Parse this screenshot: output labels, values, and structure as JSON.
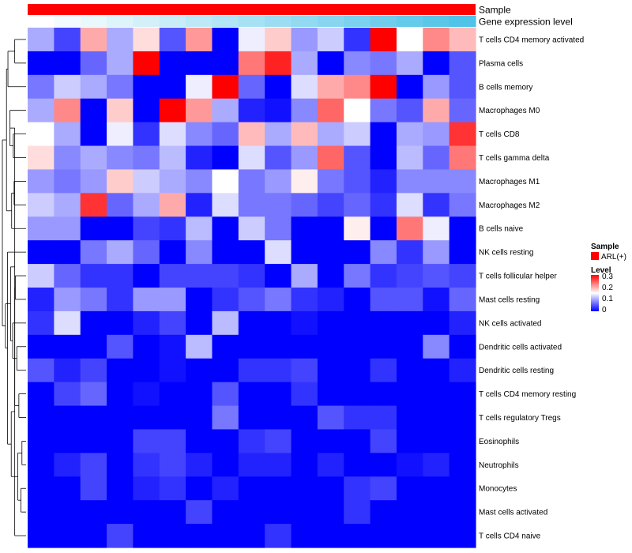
{
  "chart_data": {
    "type": "heatmap",
    "title": "",
    "annotation_tracks": [
      {
        "name": "Sample",
        "color_from": "#ff0000",
        "color_to": "#ff0000"
      },
      {
        "name": "Gene expression level",
        "color_from": "#ffffff",
        "color_to": "#4fc3e8"
      }
    ],
    "rows": [
      "T cells CD4 memory activated",
      "Plasma cells",
      "B cells memory",
      "Macrophages M0",
      "T cells CD8",
      "T cells gamma delta",
      "Macrophages M1",
      "Macrophages M2",
      "B cells naive",
      "NK cells resting",
      "T cells follicular helper",
      "Mast cells resting",
      "NK cells activated",
      "Dendritic cells activated",
      "Dendritic cells resting",
      "T cells CD4 memory resting",
      "T cells regulatory  Tregs",
      "Eosinophils",
      "Neutrophils",
      "Monocytes",
      "Mast cells activated",
      "T cells CD4 naive"
    ],
    "values": [
      [
        0.1,
        0.04,
        0.2,
        0.1,
        0.17,
        0.05,
        0.21,
        0.0,
        0.14,
        0.18,
        0.09,
        0.12,
        0.03,
        0.3,
        0.15,
        0.22,
        0.19
      ],
      [
        0.0,
        0.0,
        0.06,
        0.1,
        0.3,
        0.0,
        0.0,
        0.0,
        0.23,
        0.28,
        0.1,
        0.0,
        0.08,
        0.07,
        0.1,
        0.0,
        0.05
      ],
      [
        0.07,
        0.12,
        0.1,
        0.07,
        0.0,
        0.0,
        0.14,
        0.3,
        0.06,
        0.0,
        0.13,
        0.2,
        0.22,
        0.3,
        0.0,
        0.09,
        0.05
      ],
      [
        0.1,
        0.22,
        0.0,
        0.18,
        0.0,
        0.3,
        0.21,
        0.1,
        0.02,
        0.01,
        0.08,
        0.24,
        0.15,
        0.07,
        0.05,
        0.2,
        0.06
      ],
      [
        0.15,
        0.1,
        0.0,
        0.14,
        0.03,
        0.13,
        0.08,
        0.06,
        0.19,
        0.1,
        0.19,
        0.1,
        0.12,
        0.0,
        0.1,
        0.09,
        0.27
      ],
      [
        0.17,
        0.08,
        0.1,
        0.08,
        0.07,
        0.11,
        0.02,
        0.0,
        0.13,
        0.05,
        0.09,
        0.24,
        0.05,
        0.0,
        0.11,
        0.06,
        0.23
      ],
      [
        0.09,
        0.07,
        0.09,
        0.18,
        0.12,
        0.1,
        0.08,
        0.15,
        0.07,
        0.09,
        0.16,
        0.07,
        0.05,
        0.02,
        0.08,
        0.08,
        0.08
      ],
      [
        0.12,
        0.1,
        0.27,
        0.06,
        0.1,
        0.2,
        0.02,
        0.13,
        0.07,
        0.07,
        0.06,
        0.04,
        0.06,
        0.03,
        0.13,
        0.03,
        0.07
      ],
      [
        0.09,
        0.09,
        0.0,
        0.0,
        0.04,
        0.03,
        0.11,
        0.0,
        0.12,
        0.07,
        0.0,
        0.0,
        0.16,
        0.0,
        0.23,
        0.14,
        0.0
      ],
      [
        0.0,
        0.0,
        0.07,
        0.1,
        0.06,
        0.0,
        0.08,
        0.0,
        0.0,
        0.13,
        0.0,
        0.0,
        0.0,
        0.08,
        0.03,
        0.09,
        0.0
      ],
      [
        0.12,
        0.06,
        0.03,
        0.03,
        0.0,
        0.04,
        0.04,
        0.04,
        0.03,
        0.0,
        0.1,
        0.0,
        0.07,
        0.03,
        0.04,
        0.05,
        0.04
      ],
      [
        0.02,
        0.09,
        0.07,
        0.03,
        0.09,
        0.09,
        0.0,
        0.03,
        0.05,
        0.07,
        0.03,
        0.02,
        0.0,
        0.05,
        0.05,
        0.01,
        0.06
      ],
      [
        0.03,
        0.13,
        0.0,
        0.0,
        0.02,
        0.04,
        0.0,
        0.11,
        0.0,
        0.0,
        0.01,
        0.0,
        0.0,
        0.0,
        0.0,
        0.0,
        0.02
      ],
      [
        0.0,
        0.0,
        0.0,
        0.05,
        0.0,
        0.01,
        0.11,
        0.0,
        0.0,
        0.0,
        0.0,
        0.0,
        0.0,
        0.0,
        0.0,
        0.08,
        0.0
      ],
      [
        0.05,
        0.02,
        0.04,
        0.0,
        0.0,
        0.01,
        0.0,
        0.0,
        0.03,
        0.03,
        0.04,
        0.0,
        0.0,
        0.03,
        0.0,
        0.0,
        0.02
      ],
      [
        0.0,
        0.04,
        0.06,
        0.0,
        0.01,
        0.0,
        0.0,
        0.05,
        0.0,
        0.0,
        0.03,
        0.0,
        0.0,
        0.0,
        0.0,
        0.0,
        0.0
      ],
      [
        0.0,
        0.0,
        0.0,
        0.0,
        0.0,
        0.0,
        0.0,
        0.07,
        0.0,
        0.0,
        0.0,
        0.05,
        0.03,
        0.03,
        0.0,
        0.0,
        0.0
      ],
      [
        0.0,
        0.0,
        0.0,
        0.0,
        0.04,
        0.04,
        0.0,
        0.0,
        0.03,
        0.04,
        0.0,
        0.0,
        0.0,
        0.04,
        0.0,
        0.0,
        0.0
      ],
      [
        0.0,
        0.02,
        0.04,
        0.0,
        0.03,
        0.04,
        0.02,
        0.0,
        0.02,
        0.02,
        0.0,
        0.02,
        0.0,
        0.0,
        0.01,
        0.02,
        0.0
      ],
      [
        0.0,
        0.0,
        0.04,
        0.0,
        0.02,
        0.03,
        0.0,
        0.02,
        0.0,
        0.0,
        0.0,
        0.0,
        0.03,
        0.04,
        0.0,
        0.0,
        0.0
      ],
      [
        0.0,
        0.0,
        0.0,
        0.0,
        0.0,
        0.0,
        0.04,
        0.0,
        0.0,
        0.0,
        0.0,
        0.0,
        0.03,
        0.0,
        0.0,
        0.0,
        0.0
      ],
      [
        0.0,
        0.0,
        0.0,
        0.04,
        0.0,
        0.0,
        0.0,
        0.0,
        0.0,
        0.03,
        0.0,
        0.0,
        0.0,
        0.0,
        0.0,
        0.0,
        0.0
      ]
    ],
    "dendrogram": {
      "merges": [
        [
          0,
          1,
          0.55
        ],
        [
          4,
          5,
          0.62
        ],
        [
          6,
          7,
          0.58
        ],
        [
          10,
          11,
          0.52
        ],
        [
          13,
          14,
          0.45
        ],
        [
          15,
          16,
          0.35
        ],
        [
          17,
          18,
          0.2
        ],
        [
          19,
          20,
          0.25
        ],
        [
          -7,
          -8,
          0.4
        ],
        [
          21,
          -4,
          0.55
        ],
        [
          -1,
          2,
          0.88
        ],
        [
          3,
          -2,
          0.78
        ],
        [
          -3,
          8,
          0.7
        ],
        [
          -10,
          -9,
          0.72
        ],
        [
          9,
          -14,
          0.9
        ],
        [
          12,
          -5,
          0.65
        ],
        [
          -12,
          -6,
          0.55
        ],
        [
          -11,
          -13,
          0.95
        ],
        [
          -16,
          -17,
          0.75
        ],
        [
          -15,
          -19,
          1.0
        ],
        [
          -18,
          -20,
          1.15
        ]
      ]
    },
    "legends": {
      "sample": {
        "title": "Sample",
        "entries": [
          {
            "label": "ARL(+)",
            "color": "#ff0000"
          }
        ]
      },
      "level": {
        "title": "Level",
        "ticks": [
          "0.3",
          "0.2",
          "0.1",
          "0"
        ],
        "min": 0,
        "max": 0.3
      }
    },
    "colors": {
      "low": "#0000ff",
      "mid": "#ffffff",
      "high": "#ff0000",
      "mid_value": 0.15
    }
  }
}
